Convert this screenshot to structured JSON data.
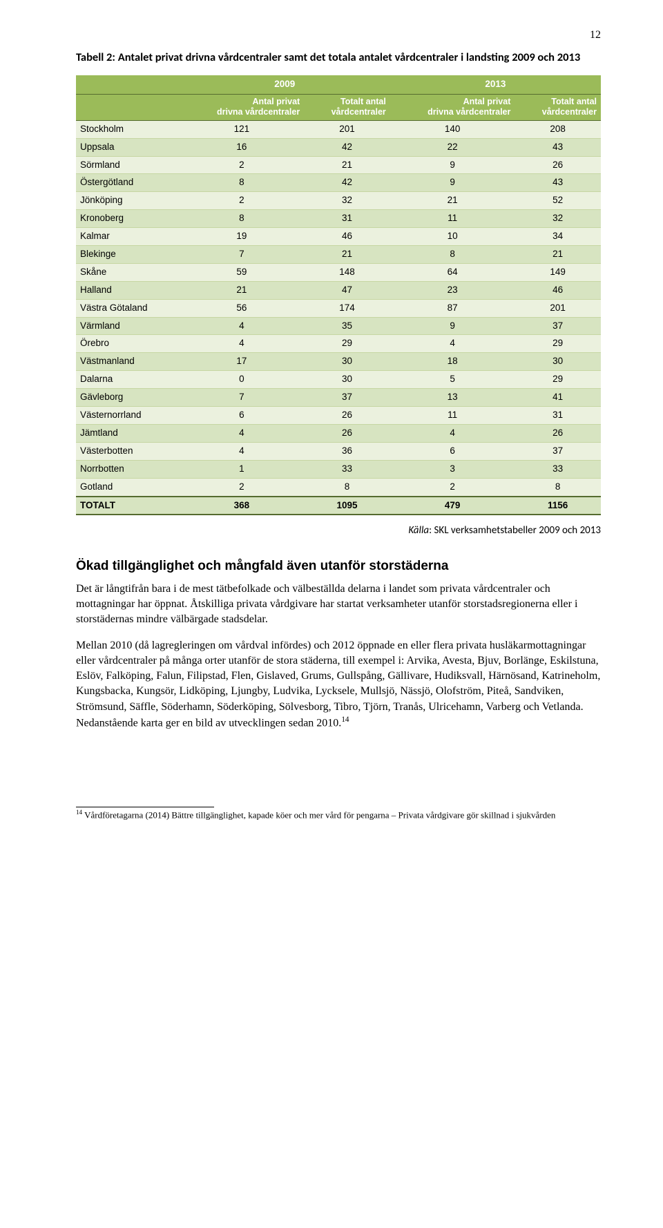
{
  "page_number": "12",
  "table_title": "Tabell 2: Antalet privat drivna vårdcentraler samt det totala antalet vårdcentraler i landsting 2009 och 2013",
  "table": {
    "type": "table",
    "year_group_labels": [
      "2009",
      "2013"
    ],
    "sub_headers": {
      "col1": "",
      "col2_line1": "Antal privat",
      "col2_line2": "drivna vårdcentraler",
      "col3_line1": "Totalt antal",
      "col3_line2": "vårdcentraler",
      "col4_line1": "Antal privat",
      "col4_line2": "drivna vårdcentraler",
      "col5_line1": "Totalt antal",
      "col5_line2": "vårdcentraler"
    },
    "rows": [
      {
        "label": "Stockholm",
        "c1": "121",
        "c2": "201",
        "c3": "140",
        "c4": "208"
      },
      {
        "label": "Uppsala",
        "c1": "16",
        "c2": "42",
        "c3": "22",
        "c4": "43"
      },
      {
        "label": "Sörmland",
        "c1": "2",
        "c2": "21",
        "c3": "9",
        "c4": "26"
      },
      {
        "label": "Östergötland",
        "c1": "8",
        "c2": "42",
        "c3": "9",
        "c4": "43"
      },
      {
        "label": "Jönköping",
        "c1": "2",
        "c2": "32",
        "c3": "21",
        "c4": "52"
      },
      {
        "label": "Kronoberg",
        "c1": "8",
        "c2": "31",
        "c3": "11",
        "c4": "32"
      },
      {
        "label": "Kalmar",
        "c1": "19",
        "c2": "46",
        "c3": "10",
        "c4": "34"
      },
      {
        "label": "Blekinge",
        "c1": "7",
        "c2": "21",
        "c3": "8",
        "c4": "21"
      },
      {
        "label": "Skåne",
        "c1": "59",
        "c2": "148",
        "c3": "64",
        "c4": "149"
      },
      {
        "label": "Halland",
        "c1": "21",
        "c2": "47",
        "c3": "23",
        "c4": "46"
      },
      {
        "label": "Västra Götaland",
        "c1": "56",
        "c2": "174",
        "c3": "87",
        "c4": "201"
      },
      {
        "label": "Värmland",
        "c1": "4",
        "c2": "35",
        "c3": "9",
        "c4": "37"
      },
      {
        "label": "Örebro",
        "c1": "4",
        "c2": "29",
        "c3": "4",
        "c4": "29"
      },
      {
        "label": "Västmanland",
        "c1": "17",
        "c2": "30",
        "c3": "18",
        "c4": "30"
      },
      {
        "label": "Dalarna",
        "c1": "0",
        "c2": "30",
        "c3": "5",
        "c4": "29"
      },
      {
        "label": "Gävleborg",
        "c1": "7",
        "c2": "37",
        "c3": "13",
        "c4": "41"
      },
      {
        "label": "Västernorrland",
        "c1": "6",
        "c2": "26",
        "c3": "11",
        "c4": "31"
      },
      {
        "label": "Jämtland",
        "c1": "4",
        "c2": "26",
        "c3": "4",
        "c4": "26"
      },
      {
        "label": "Västerbotten",
        "c1": "4",
        "c2": "36",
        "c3": "6",
        "c4": "37"
      },
      {
        "label": "Norrbotten",
        "c1": "1",
        "c2": "33",
        "c3": "3",
        "c4": "33"
      },
      {
        "label": "Gotland",
        "c1": "2",
        "c2": "8",
        "c3": "2",
        "c4": "8"
      }
    ],
    "total_row": {
      "label": "TOTALT",
      "c1": "368",
      "c2": "1095",
      "c3": "479",
      "c4": "1156"
    },
    "header_bg": "#9bbb59",
    "header_fg": "#ffffff",
    "row_bg_odd": "#ebf1de",
    "row_bg_even": "#d7e4c1",
    "border_color": "#556b2f"
  },
  "source_prefix": "Källa",
  "source_text": ": SKL verksamhetstabeller 2009 och 2013",
  "heading": "Ökad tillgänglighet och mångfald även utanför storstäderna",
  "para1": "Det är långtifrån bara i de mest tätbefolkade och välbeställda delarna i landet som privata vårdcentraler och mottagningar har öppnat. Åtskilliga privata vårdgivare har startat verksamheter utanför storstadsregionerna eller i storstädernas mindre välbärgade stadsdelar.",
  "para2": "Mellan 2010 (då lagregleringen om vårdval infördes) och 2012 öppnade en eller flera privata husläkarmottagningar eller vårdcentraler på många orter utanför de stora städerna, till exempel i: Arvika, Avesta, Bjuv, Borlänge, Eskilstuna, Eslöv, Falköping, Falun, Filipstad, Flen, Gislaved, Grums, Gullspång, Gällivare, Hudiksvall, Härnösand, Katrineholm, Kungsbacka, Kungsör, Lidköping, Ljungby, Ludvika, Lycksele, Mullsjö, Nässjö, Olofström, Piteå, Sandviken, Strömsund, Säffle, Söderhamn, Söderköping, Sölvesborg, Tibro, Tjörn, Tranås, Ulricehamn, Varberg och Vetlanda. Nedanstående karta ger en bild av utvecklingen sedan 2010.",
  "footnote_marker": "14",
  "footnote_text": " Vårdföretagarna (2014) Bättre tillgänglighet, kapade köer och mer vård för pengarna – Privata vårdgivare gör skillnad i sjukvården"
}
